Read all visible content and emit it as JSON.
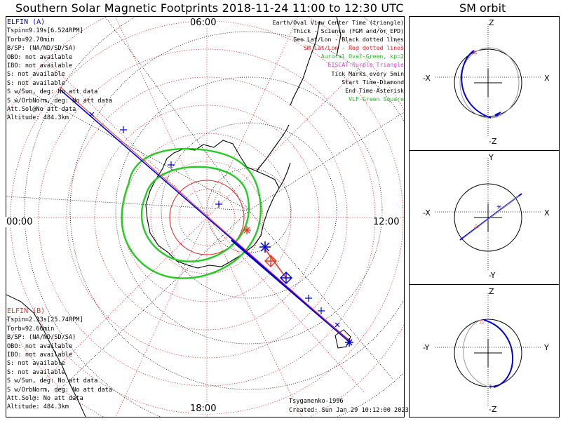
{
  "title": "Southern Solar Magnetic Footprints 2018-11-24 11:00 to 12:30 UTC",
  "orbit_title": "SM orbit",
  "colors": {
    "elfin_a": "#0000dd",
    "elfin_b": "#ee3322",
    "auroral": "#22cc22",
    "sm_grid": "#dd2222",
    "geo_grid": "#000000",
    "eiscat": "#cc44cc",
    "vlf": "#22cc22"
  },
  "mlt_labels": {
    "top": "06:00",
    "left": "00:00",
    "right": "12:00",
    "bottom": "18:00"
  },
  "elfin_a_info": {
    "name": "ELFIN (A)",
    "lines": [
      "Tspin=9.19s[6.524RPM]",
      "Torb=92.70min",
      "B/SP: (NA/ND/SD/SA)",
      "OBO: not available",
      "IBO: not available",
      "S: not available",
      "S: not available",
      "S w/Sun, deg: No att data",
      "S w/OrbNorm, deg: No att data",
      "Att.Sol@No att data",
      "Altitude: 484.3km"
    ]
  },
  "elfin_b_info": {
    "name": "ELFIN (B)",
    "lines": [
      "Tspin=2.33s[25.74RPM]",
      "Torb=92.66min",
      "B/SP: (NA/ND/SD/SA)",
      "OBO: not available",
      "IBO: not available",
      "S: not available",
      "S: not available",
      "S w/Sun, deg: No att data",
      "S w/OrbNorm, deg: No att data",
      "Att.Sol@: No att data",
      "Altitude: 484.3km"
    ]
  },
  "legend": [
    {
      "text": "Earth/Oval View Center Time (triangle)",
      "color": "#000000"
    },
    {
      "text": "Thick - Science (FGM and/or EPD)",
      "color": "#000000"
    },
    {
      "text": "Geo Lat/Lon - Black dotted lines",
      "color": "#000000"
    },
    {
      "text": "SM Lat/Lon - Red dotted lines",
      "color": "#dd2222"
    },
    {
      "text": "Auroral Oval-Green, kp=2",
      "color": "#22bb22"
    },
    {
      "text": "EISCAT-Purple Triangle",
      "color": "#cc44cc"
    },
    {
      "text": "Tick Marks every 5min",
      "color": "#000000"
    },
    {
      "text": "Start Time-Diamond",
      "color": "#000000"
    },
    {
      "text": "End Time-Asterisk",
      "color": "#000000"
    },
    {
      "text": "VLF-Green Square",
      "color": "#22bb22"
    }
  ],
  "footer": {
    "author": "Tsyganenko-1996",
    "created": "Created: Sun Jan 29 10:12:00 2023"
  },
  "orbit_panels": [
    {
      "top": "Z",
      "bottom": "-Z",
      "left": "-X",
      "right": "X"
    },
    {
      "top": "Y",
      "bottom": "-Y",
      "left": "-X",
      "right": "X"
    },
    {
      "top": "Z",
      "bottom": "-Z",
      "left": "-Y",
      "right": "Y"
    }
  ]
}
